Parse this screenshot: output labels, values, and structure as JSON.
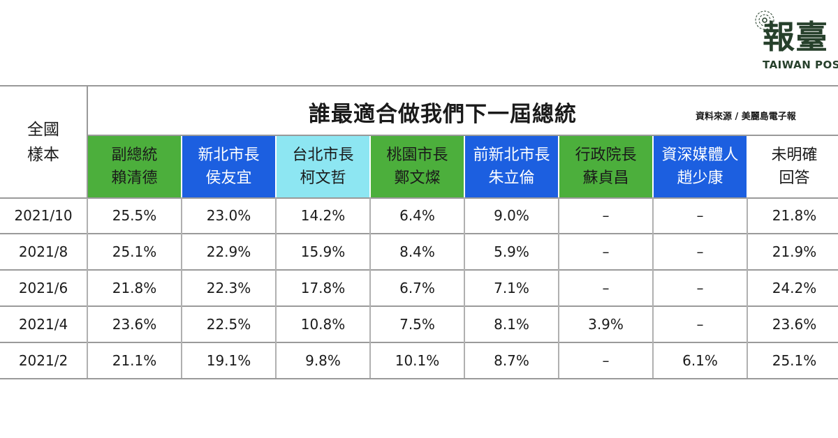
{
  "logo": {
    "name": "報臺",
    "subtitle": "TAIWAN POST",
    "color": "#26402b"
  },
  "table": {
    "corner_label_lines": [
      "全國",
      "樣本"
    ],
    "title": "誰最適合做我們下一屆總統",
    "source": "資料來源 / 美麗島電子報",
    "colors": {
      "green": "#4caf3c",
      "blue": "#1c5fe0",
      "cyan": "#8de6f2"
    },
    "columns": [
      {
        "line1": "副總統",
        "line2": "賴清德",
        "style": "green"
      },
      {
        "line1": "新北市長",
        "line2": "侯友宜",
        "style": "blue"
      },
      {
        "line1": "台北市長",
        "line2": "柯文哲",
        "style": "cyan"
      },
      {
        "line1": "桃園市長",
        "line2": "鄭文燦",
        "style": "green"
      },
      {
        "line1": "前新北市長",
        "line2": "朱立倫",
        "style": "blue"
      },
      {
        "line1": "行政院長",
        "line2": "蘇貞昌",
        "style": "green"
      },
      {
        "line1": "資深媒體人",
        "line2": "趙少康",
        "style": "blue"
      },
      {
        "line1": "未明確",
        "line2": "回答",
        "style": "white"
      }
    ],
    "rows": [
      {
        "date": "2021/10",
        "values": [
          "25.5%",
          "23.0%",
          "14.2%",
          "6.4%",
          "9.0%",
          "–",
          "–",
          "21.8%"
        ]
      },
      {
        "date": "2021/8",
        "values": [
          "25.1%",
          "22.9%",
          "15.9%",
          "8.4%",
          "5.9%",
          "–",
          "–",
          "21.9%"
        ]
      },
      {
        "date": "2021/6",
        "values": [
          "21.8%",
          "22.3%",
          "17.8%",
          "6.7%",
          "7.1%",
          "–",
          "–",
          "24.2%"
        ]
      },
      {
        "date": "2021/4",
        "values": [
          "23.6%",
          "22.5%",
          "10.8%",
          "7.5%",
          "8.1%",
          "3.9%",
          "–",
          "23.6%"
        ]
      },
      {
        "date": "2021/2",
        "values": [
          "21.1%",
          "19.1%",
          "9.8%",
          "10.1%",
          "8.7%",
          "–",
          "6.1%",
          "25.1%"
        ]
      }
    ]
  }
}
